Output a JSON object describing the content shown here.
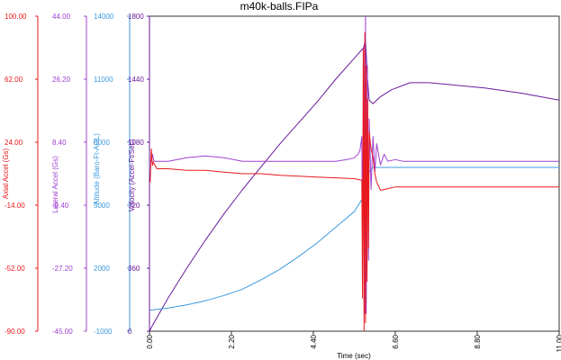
{
  "chart_data": {
    "type": "line",
    "title": "m40k-balls.FIPa",
    "xlabel": "Time (sec)",
    "x_ticks": [
      "0.00",
      "2.20",
      "4.40",
      "6.60",
      "8.80",
      "11.00"
    ],
    "xlim": [
      0,
      11
    ],
    "grid": false,
    "y_axes": [
      {
        "id": "axial",
        "label": "Axial Accel (Gs)",
        "color": "#e8191c",
        "ticks": [
          "100.00",
          "62.00",
          "24.00",
          "-14.00",
          "-52.00",
          "-90.00"
        ],
        "ylim": [
          -90,
          100
        ]
      },
      {
        "id": "lateral",
        "label": "Lateral Accel (Gs)",
        "color": "#a040d0",
        "ticks": [
          "44.00",
          "26.20",
          "8.40",
          "-9.40",
          "-27.20",
          "-45.00"
        ],
        "ylim": [
          -45,
          44
        ]
      },
      {
        "id": "altitude",
        "label": "Altitude (Baro-Ft-AGL)",
        "color": "#3c9ae0",
        "ticks": [
          "14000",
          "11000",
          "8000",
          "5000",
          "2000",
          "-1000"
        ],
        "ylim": [
          -1000,
          14000
        ]
      },
      {
        "id": "velocity",
        "label": "Velocity (Accel-Ft/Sec)",
        "color": "#6a1a9a",
        "ticks": [
          "1800",
          "1440",
          "1080",
          "720",
          "360",
          "0"
        ],
        "ylim": [
          0,
          1800
        ]
      }
    ],
    "series": [
      {
        "axis": "velocity",
        "color": "#6a1a9a",
        "x": [
          0,
          0.1,
          0.5,
          1,
          1.5,
          2,
          2.5,
          3,
          3.5,
          4,
          4.5,
          5,
          5.5,
          5.75,
          5.8,
          5.85,
          5.9,
          6,
          6.2,
          6.5,
          7,
          7.5,
          8,
          9,
          10,
          11
        ],
        "y": [
          0,
          40,
          190,
          360,
          520,
          670,
          810,
          940,
          1070,
          1190,
          1310,
          1440,
          1560,
          1620,
          1670,
          1450,
          1320,
          1300,
          1340,
          1380,
          1420,
          1420,
          1410,
          1390,
          1360,
          1320
        ]
      },
      {
        "axis": "altitude",
        "color": "#3c9ae0",
        "x": [
          0,
          0.5,
          1,
          1.5,
          2,
          2.5,
          3,
          3.5,
          4,
          4.5,
          5,
          5.5,
          5.75,
          5.8,
          5.85,
          5.9,
          6,
          6.2,
          6.5,
          7,
          8,
          9,
          10,
          11
        ],
        "y": [
          0,
          100,
          250,
          450,
          700,
          1000,
          1450,
          1950,
          2550,
          3200,
          3950,
          4700,
          5400,
          5800,
          6200,
          6600,
          6800,
          6800,
          6800,
          6800,
          6800,
          6800,
          6800,
          6800
        ]
      },
      {
        "axis": "lateral",
        "color": "#a040d0",
        "x": [
          0,
          0.05,
          0.08,
          0.12,
          0.2,
          0.5,
          1,
          1.5,
          2,
          2.5,
          3,
          3.5,
          4,
          4.5,
          5,
          5.3,
          5.5,
          5.6,
          5.65,
          5.7,
          5.72,
          5.75,
          5.78,
          5.8,
          5.82,
          5.85,
          5.88,
          5.9,
          5.95,
          6,
          6.05,
          6.1,
          6.2,
          6.3,
          6.4,
          6.6,
          6.8,
          7,
          8,
          9,
          10,
          11
        ],
        "y": [
          3,
          3,
          5,
          3,
          3,
          3,
          4,
          4.5,
          4,
          3,
          3,
          3,
          3,
          3,
          3,
          3.5,
          4,
          5,
          6,
          10,
          -20,
          35,
          -40,
          44,
          -40,
          30,
          -25,
          15,
          -5,
          10,
          0,
          8,
          2,
          5,
          3,
          3.5,
          3,
          3,
          3,
          3,
          3,
          3
        ]
      },
      {
        "axis": "axial",
        "color": "#e8191c",
        "x": [
          0,
          0.02,
          0.05,
          0.08,
          0.1,
          0.2,
          0.5,
          1,
          1.5,
          2,
          2.5,
          3,
          3.5,
          4,
          4.5,
          5,
          5.5,
          5.7,
          5.72,
          5.74,
          5.76,
          5.78,
          5.8,
          5.82,
          5.84,
          5.86,
          5.88,
          5.9,
          5.95,
          6,
          6.05,
          6.1,
          6.2,
          6.4,
          6.6,
          7,
          8,
          9,
          10,
          11
        ],
        "y": [
          0,
          0,
          20,
          10,
          12,
          8,
          8,
          7,
          7,
          6,
          5,
          5,
          4,
          3.5,
          3,
          2.5,
          2,
          1,
          -70,
          80,
          -90,
          90,
          -85,
          70,
          -60,
          50,
          -40,
          30,
          20,
          15,
          5,
          0,
          -5,
          -4,
          -3,
          -3,
          -3,
          -3,
          -3,
          -3
        ]
      }
    ]
  }
}
